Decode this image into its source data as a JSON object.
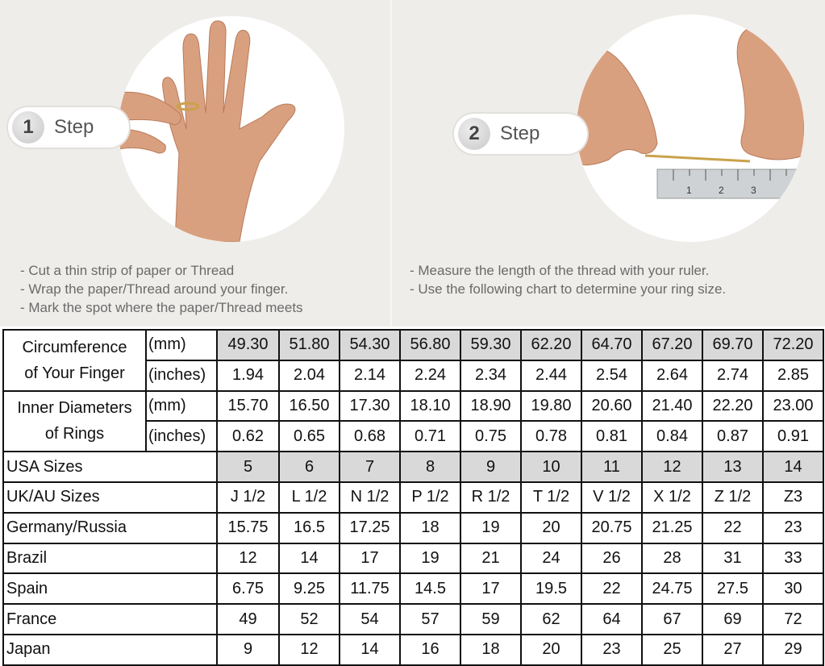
{
  "steps": [
    {
      "number": "1",
      "label": "Step",
      "instructions": [
        "- Cut a thin strip of paper or Thread",
        "- Wrap the paper/Thread around your finger.",
        "- Mark the spot where the paper/Thread meets"
      ]
    },
    {
      "number": "2",
      "label": "Step",
      "instructions": [
        "- Measure the length of the thread with your ruler.",
        "- Use the following chart to determine your ring size."
      ]
    }
  ],
  "ruler_marks": [
    "1",
    "2",
    "3"
  ],
  "colors": {
    "highlight": "#d9d9d9",
    "background": "#efedea",
    "border": "#111111"
  },
  "table": {
    "groups": [
      {
        "label_lines": [
          "Circumference",
          "of Your Finger"
        ],
        "rows": [
          {
            "unit": "(mm)",
            "highlight": true,
            "values": [
              "49.30",
              "51.80",
              "54.30",
              "56.80",
              "59.30",
              "62.20",
              "64.70",
              "67.20",
              "69.70",
              "72.20"
            ]
          },
          {
            "unit": "(inches)",
            "highlight": false,
            "values": [
              "1.94",
              "2.04",
              "2.14",
              "2.24",
              "2.34",
              "2.44",
              "2.54",
              "2.64",
              "2.74",
              "2.85"
            ]
          }
        ]
      },
      {
        "label_lines": [
          "Inner Diameters",
          "of Rings"
        ],
        "rows": [
          {
            "unit": "(mm)",
            "highlight": false,
            "values": [
              "15.70",
              "16.50",
              "17.30",
              "18.10",
              "18.90",
              "19.80",
              "20.60",
              "21.40",
              "22.20",
              "23.00"
            ]
          },
          {
            "unit": "(inches)",
            "highlight": false,
            "values": [
              "0.62",
              "0.65",
              "0.68",
              "0.71",
              "0.75",
              "0.78",
              "0.81",
              "0.84",
              "0.87",
              "0.91"
            ]
          }
        ]
      }
    ],
    "rows": [
      {
        "label": "USA Sizes",
        "highlight": true,
        "values": [
          "5",
          "6",
          "7",
          "8",
          "9",
          "10",
          "11",
          "12",
          "13",
          "14"
        ]
      },
      {
        "label": "UK/AU Sizes",
        "highlight": false,
        "values": [
          "J 1/2",
          "L 1/2",
          "N 1/2",
          "P 1/2",
          "R 1/2",
          "T 1/2",
          "V 1/2",
          "X 1/2",
          "Z 1/2",
          "Z3"
        ]
      },
      {
        "label": "Germany/Russia",
        "highlight": false,
        "values": [
          "15.75",
          "16.5",
          "17.25",
          "18",
          "19",
          "20",
          "20.75",
          "21.25",
          "22",
          "23"
        ]
      },
      {
        "label": "Brazil",
        "highlight": false,
        "values": [
          "12",
          "14",
          "17",
          "19",
          "21",
          "24",
          "26",
          "28",
          "31",
          "33"
        ]
      },
      {
        "label": "Spain",
        "highlight": false,
        "values": [
          "6.75",
          "9.25",
          "11.75",
          "14.5",
          "17",
          "19.5",
          "22",
          "24.75",
          "27.5",
          "30"
        ]
      },
      {
        "label": "France",
        "highlight": false,
        "values": [
          "49",
          "52",
          "54",
          "57",
          "59",
          "62",
          "64",
          "67",
          "69",
          "72"
        ]
      },
      {
        "label": "Japan",
        "highlight": false,
        "values": [
          "9",
          "12",
          "14",
          "16",
          "18",
          "20",
          "23",
          "25",
          "27",
          "29"
        ]
      }
    ]
  }
}
